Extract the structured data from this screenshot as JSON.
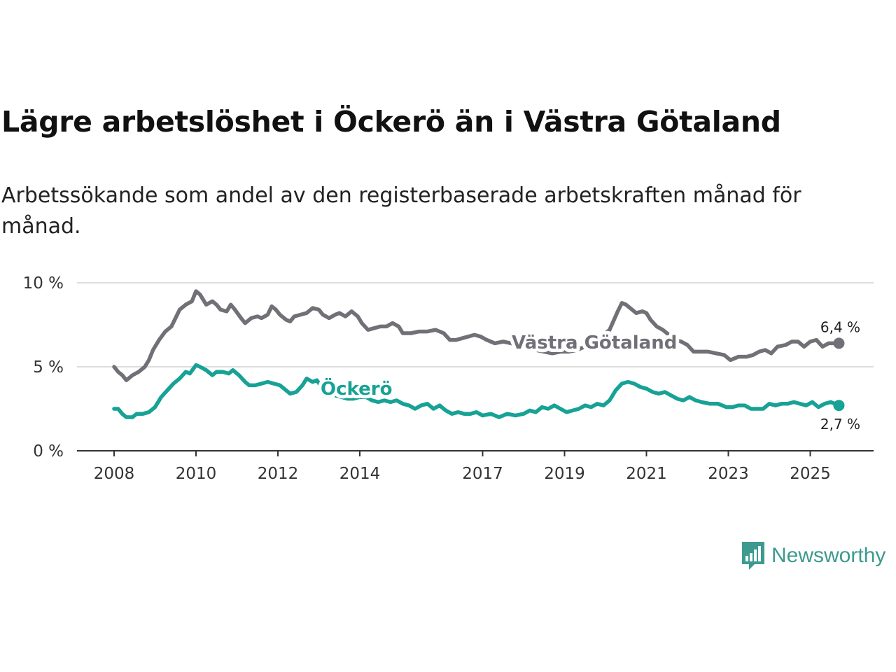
{
  "title": "Lägre arbetslöshet i Öckerö än i Västra Götaland",
  "subtitle": "Arbetssökande som andel av den registerbaserade arbetskraften månad för månad.",
  "brand": {
    "name": "Newsworthy",
    "icon": "newsworthy-logo-icon",
    "color": "#3c9a8e"
  },
  "colors": {
    "vg": "#727077",
    "ockero": "#17a295",
    "grid": "#dddddd",
    "axis": "#333333"
  },
  "chart_data": {
    "type": "line",
    "title": "Lägre arbetslöshet i Öckerö än i Västra Götaland",
    "xlabel": "",
    "ylabel": "",
    "xlim": [
      2008,
      2026
    ],
    "ylim": [
      0,
      10
    ],
    "grid": true,
    "y_ticks": [
      0,
      5,
      10
    ],
    "y_tick_labels": [
      "0 %",
      "5 %",
      "10 %"
    ],
    "x_ticks": [
      2008,
      2010,
      2012,
      2014,
      2017,
      2019,
      2021,
      2023,
      2025
    ],
    "x_tick_labels": [
      "2008",
      "2010",
      "2012",
      "2014",
      "2017",
      "2019",
      "2021",
      "2023",
      "2025"
    ],
    "series": [
      {
        "name": "Västra Götaland",
        "label": "Västra Götaland",
        "end_label": "6,4 %",
        "points": [
          [
            2008.0,
            5.0
          ],
          [
            2008.1,
            4.7
          ],
          [
            2008.2,
            4.5
          ],
          [
            2008.3,
            4.2
          ],
          [
            2008.45,
            4.5
          ],
          [
            2008.6,
            4.7
          ],
          [
            2008.75,
            5.0
          ],
          [
            2008.85,
            5.4
          ],
          [
            2008.95,
            6.0
          ],
          [
            2009.1,
            6.6
          ],
          [
            2009.25,
            7.1
          ],
          [
            2009.4,
            7.4
          ],
          [
            2009.5,
            7.9
          ],
          [
            2009.6,
            8.4
          ],
          [
            2009.75,
            8.7
          ],
          [
            2009.9,
            8.9
          ],
          [
            2010.0,
            9.5
          ],
          [
            2010.1,
            9.3
          ],
          [
            2010.25,
            8.7
          ],
          [
            2010.4,
            8.9
          ],
          [
            2010.5,
            8.7
          ],
          [
            2010.6,
            8.4
          ],
          [
            2010.75,
            8.3
          ],
          [
            2010.85,
            8.7
          ],
          [
            2010.95,
            8.4
          ],
          [
            2011.1,
            7.9
          ],
          [
            2011.2,
            7.6
          ],
          [
            2011.35,
            7.9
          ],
          [
            2011.5,
            8.0
          ],
          [
            2011.6,
            7.9
          ],
          [
            2011.75,
            8.1
          ],
          [
            2011.85,
            8.6
          ],
          [
            2011.95,
            8.4
          ],
          [
            2012.05,
            8.1
          ],
          [
            2012.2,
            7.8
          ],
          [
            2012.3,
            7.7
          ],
          [
            2012.4,
            8.0
          ],
          [
            2012.55,
            8.1
          ],
          [
            2012.7,
            8.2
          ],
          [
            2012.85,
            8.5
          ],
          [
            2013.0,
            8.4
          ],
          [
            2013.1,
            8.1
          ],
          [
            2013.25,
            7.9
          ],
          [
            2013.4,
            8.1
          ],
          [
            2013.5,
            8.2
          ],
          [
            2013.65,
            8.0
          ],
          [
            2013.8,
            8.3
          ],
          [
            2013.95,
            8.0
          ],
          [
            2014.05,
            7.6
          ],
          [
            2014.2,
            7.2
          ],
          [
            2014.35,
            7.3
          ],
          [
            2014.5,
            7.4
          ],
          [
            2014.65,
            7.4
          ],
          [
            2014.8,
            7.6
          ],
          [
            2014.95,
            7.4
          ],
          [
            2015.05,
            7.0
          ],
          [
            2015.25,
            7.0
          ],
          [
            2015.45,
            7.1
          ],
          [
            2015.65,
            7.1
          ],
          [
            2015.85,
            7.2
          ],
          [
            2016.05,
            7.0
          ],
          [
            2016.2,
            6.6
          ],
          [
            2016.35,
            6.6
          ],
          [
            2016.5,
            6.7
          ],
          [
            2016.65,
            6.8
          ],
          [
            2016.8,
            6.9
          ],
          [
            2016.95,
            6.8
          ],
          [
            2017.1,
            6.6
          ],
          [
            2017.3,
            6.4
          ],
          [
            2017.5,
            6.5
          ],
          [
            2017.7,
            6.4
          ],
          [
            2017.9,
            6.2
          ],
          [
            2018.1,
            6.1
          ],
          [
            2018.3,
            6.0
          ],
          [
            2018.5,
            5.9
          ],
          [
            2018.7,
            5.8
          ],
          [
            2018.9,
            5.9
          ],
          [
            2019.1,
            5.9
          ],
          [
            2019.3,
            6.0
          ],
          [
            2019.5,
            6.2
          ],
          [
            2019.7,
            6.5
          ],
          [
            2019.9,
            6.8
          ],
          [
            2020.1,
            7.2
          ],
          [
            2020.3,
            8.3
          ],
          [
            2020.4,
            8.8
          ],
          [
            2020.5,
            8.7
          ],
          [
            2020.6,
            8.5
          ],
          [
            2020.75,
            8.2
          ],
          [
            2020.9,
            8.3
          ],
          [
            2021.0,
            8.2
          ],
          [
            2021.1,
            7.8
          ],
          [
            2021.25,
            7.4
          ],
          [
            2021.4,
            7.2
          ],
          [
            2021.55,
            6.9
          ],
          [
            2021.7,
            6.6
          ],
          [
            2021.85,
            6.5
          ],
          [
            2022.0,
            6.3
          ],
          [
            2022.15,
            5.9
          ],
          [
            2022.3,
            5.9
          ],
          [
            2022.5,
            5.9
          ],
          [
            2022.7,
            5.8
          ],
          [
            2022.9,
            5.7
          ],
          [
            2023.05,
            5.4
          ],
          [
            2023.25,
            5.6
          ],
          [
            2023.45,
            5.6
          ],
          [
            2023.6,
            5.7
          ],
          [
            2023.75,
            5.9
          ],
          [
            2023.9,
            6.0
          ],
          [
            2024.05,
            5.8
          ],
          [
            2024.2,
            6.2
          ],
          [
            2024.4,
            6.3
          ],
          [
            2024.55,
            6.5
          ],
          [
            2024.7,
            6.5
          ],
          [
            2024.85,
            6.2
          ],
          [
            2025.0,
            6.5
          ],
          [
            2025.15,
            6.6
          ],
          [
            2025.3,
            6.2
          ],
          [
            2025.45,
            6.4
          ],
          [
            2025.6,
            6.4
          ],
          [
            2025.7,
            6.4
          ]
        ]
      },
      {
        "name": "Öckerö",
        "label": "Öckerö",
        "end_label": "2,7 %",
        "points": [
          [
            2008.0,
            2.5
          ],
          [
            2008.1,
            2.5
          ],
          [
            2008.2,
            2.2
          ],
          [
            2008.3,
            2.0
          ],
          [
            2008.45,
            2.0
          ],
          [
            2008.55,
            2.2
          ],
          [
            2008.7,
            2.2
          ],
          [
            2008.85,
            2.3
          ],
          [
            2009.0,
            2.6
          ],
          [
            2009.15,
            3.2
          ],
          [
            2009.3,
            3.6
          ],
          [
            2009.45,
            4.0
          ],
          [
            2009.6,
            4.3
          ],
          [
            2009.75,
            4.7
          ],
          [
            2009.85,
            4.6
          ],
          [
            2010.0,
            5.1
          ],
          [
            2010.1,
            5.0
          ],
          [
            2010.25,
            4.8
          ],
          [
            2010.4,
            4.5
          ],
          [
            2010.5,
            4.7
          ],
          [
            2010.65,
            4.7
          ],
          [
            2010.8,
            4.6
          ],
          [
            2010.9,
            4.8
          ],
          [
            2011.05,
            4.5
          ],
          [
            2011.2,
            4.1
          ],
          [
            2011.3,
            3.9
          ],
          [
            2011.45,
            3.9
          ],
          [
            2011.6,
            4.0
          ],
          [
            2011.75,
            4.1
          ],
          [
            2011.9,
            4.0
          ],
          [
            2012.05,
            3.9
          ],
          [
            2012.2,
            3.6
          ],
          [
            2012.3,
            3.4
          ],
          [
            2012.45,
            3.5
          ],
          [
            2012.6,
            3.9
          ],
          [
            2012.7,
            4.3
          ],
          [
            2012.85,
            4.1
          ],
          [
            2012.95,
            4.2
          ],
          [
            2013.1,
            3.7
          ],
          [
            2013.25,
            3.5
          ],
          [
            2013.4,
            3.3
          ],
          [
            2013.55,
            3.2
          ],
          [
            2013.7,
            3.1
          ],
          [
            2013.85,
            3.1
          ],
          [
            2014.0,
            3.2
          ],
          [
            2014.15,
            3.2
          ],
          [
            2014.3,
            3.0
          ],
          [
            2014.45,
            2.9
          ],
          [
            2014.6,
            3.0
          ],
          [
            2014.75,
            2.9
          ],
          [
            2014.9,
            3.0
          ],
          [
            2015.05,
            2.8
          ],
          [
            2015.2,
            2.7
          ],
          [
            2015.35,
            2.5
          ],
          [
            2015.5,
            2.7
          ],
          [
            2015.65,
            2.8
          ],
          [
            2015.8,
            2.5
          ],
          [
            2015.95,
            2.7
          ],
          [
            2016.1,
            2.4
          ],
          [
            2016.25,
            2.2
          ],
          [
            2016.4,
            2.3
          ],
          [
            2016.55,
            2.2
          ],
          [
            2016.7,
            2.2
          ],
          [
            2016.85,
            2.3
          ],
          [
            2017.0,
            2.1
          ],
          [
            2017.2,
            2.2
          ],
          [
            2017.4,
            2.0
          ],
          [
            2017.6,
            2.2
          ],
          [
            2017.8,
            2.1
          ],
          [
            2018.0,
            2.2
          ],
          [
            2018.15,
            2.4
          ],
          [
            2018.3,
            2.3
          ],
          [
            2018.45,
            2.6
          ],
          [
            2018.6,
            2.5
          ],
          [
            2018.75,
            2.7
          ],
          [
            2018.9,
            2.5
          ],
          [
            2019.05,
            2.3
          ],
          [
            2019.2,
            2.4
          ],
          [
            2019.35,
            2.5
          ],
          [
            2019.5,
            2.7
          ],
          [
            2019.65,
            2.6
          ],
          [
            2019.8,
            2.8
          ],
          [
            2019.95,
            2.7
          ],
          [
            2020.1,
            3.0
          ],
          [
            2020.25,
            3.6
          ],
          [
            2020.4,
            4.0
          ],
          [
            2020.55,
            4.1
          ],
          [
            2020.7,
            4.0
          ],
          [
            2020.85,
            3.8
          ],
          [
            2021.0,
            3.7
          ],
          [
            2021.15,
            3.5
          ],
          [
            2021.3,
            3.4
          ],
          [
            2021.45,
            3.5
          ],
          [
            2021.6,
            3.3
          ],
          [
            2021.75,
            3.1
          ],
          [
            2021.9,
            3.0
          ],
          [
            2022.05,
            3.2
          ],
          [
            2022.2,
            3.0
          ],
          [
            2022.35,
            2.9
          ],
          [
            2022.55,
            2.8
          ],
          [
            2022.75,
            2.8
          ],
          [
            2022.95,
            2.6
          ],
          [
            2023.1,
            2.6
          ],
          [
            2023.25,
            2.7
          ],
          [
            2023.4,
            2.7
          ],
          [
            2023.55,
            2.5
          ],
          [
            2023.7,
            2.5
          ],
          [
            2023.85,
            2.5
          ],
          [
            2024.0,
            2.8
          ],
          [
            2024.15,
            2.7
          ],
          [
            2024.3,
            2.8
          ],
          [
            2024.45,
            2.8
          ],
          [
            2024.6,
            2.9
          ],
          [
            2024.75,
            2.8
          ],
          [
            2024.9,
            2.7
          ],
          [
            2025.05,
            2.9
          ],
          [
            2025.2,
            2.6
          ],
          [
            2025.35,
            2.8
          ],
          [
            2025.5,
            2.9
          ],
          [
            2025.6,
            2.8
          ],
          [
            2025.7,
            2.7
          ]
        ]
      }
    ]
  }
}
